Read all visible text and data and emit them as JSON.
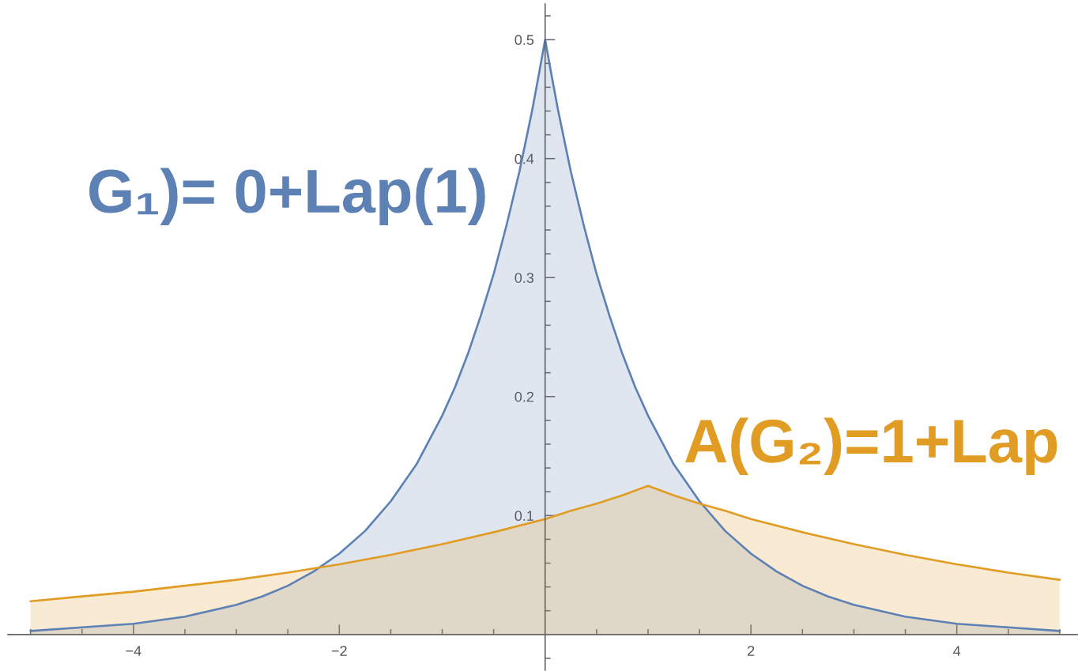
{
  "chart_data": {
    "type": "area",
    "series": [
      {
        "name": "G₁)= 0+Lap(1)",
        "color": "#5e81b5",
        "x": [
          -5,
          -4.5,
          -4,
          -3.5,
          -3,
          -2.75,
          -2.5,
          -2.25,
          -2,
          -1.75,
          -1.5,
          -1.25,
          -1,
          -0.875,
          -0.75,
          -0.625,
          -0.5,
          -0.375,
          -0.25,
          -0.1875,
          -0.125,
          -0.0625,
          0,
          0.0625,
          0.125,
          0.1875,
          0.25,
          0.375,
          0.5,
          0.625,
          0.75,
          0.875,
          1,
          1.25,
          1.5,
          1.75,
          2,
          2.25,
          2.5,
          2.75,
          3,
          3.5,
          4,
          4.5,
          5
        ],
        "values": [
          0.003,
          0.006,
          0.009,
          0.015,
          0.025,
          0.032,
          0.041,
          0.053,
          0.068,
          0.087,
          0.112,
          0.143,
          0.184,
          0.208,
          0.236,
          0.268,
          0.303,
          0.344,
          0.389,
          0.415,
          0.441,
          0.47,
          0.5,
          0.47,
          0.441,
          0.415,
          0.389,
          0.344,
          0.303,
          0.268,
          0.236,
          0.208,
          0.184,
          0.143,
          0.112,
          0.087,
          0.068,
          0.053,
          0.041,
          0.032,
          0.025,
          0.015,
          0.009,
          0.006,
          0.003
        ]
      },
      {
        "name": "A(G₂)=1+Lap",
        "color": "#e19c24",
        "x": [
          -5,
          -4.5,
          -4,
          -3.5,
          -3,
          -2.5,
          -2,
          -1.5,
          -1,
          -0.5,
          0,
          0.25,
          0.5,
          0.75,
          1,
          1.25,
          1.5,
          1.75,
          2,
          2.5,
          3,
          3.5,
          4,
          4.5,
          5
        ],
        "values": [
          0.028,
          0.032,
          0.036,
          0.041,
          0.046,
          0.052,
          0.059,
          0.067,
          0.076,
          0.086,
          0.097,
          0.104,
          0.11,
          0.117,
          0.125,
          0.117,
          0.11,
          0.104,
          0.097,
          0.086,
          0.076,
          0.067,
          0.059,
          0.052,
          0.046
        ]
      }
    ],
    "xlim": [
      -5.22,
      5.17
    ],
    "xticks": [
      {
        "value": -5,
        "label": null
      },
      {
        "value": -4.5,
        "label": null
      },
      {
        "value": -4,
        "label": "−4"
      },
      {
        "value": -3.5,
        "label": null
      },
      {
        "value": -3,
        "label": null
      },
      {
        "value": -2.5,
        "label": null
      },
      {
        "value": -2,
        "label": "−2"
      },
      {
        "value": -1.5,
        "label": null
      },
      {
        "value": -1,
        "label": null
      },
      {
        "value": -0.5,
        "label": null
      },
      {
        "value": 0.5,
        "label": null
      },
      {
        "value": 1,
        "label": null
      },
      {
        "value": 1.5,
        "label": null
      },
      2,
      {
        "value": 2.5,
        "label": null
      },
      {
        "value": 3,
        "label": null
      },
      {
        "value": 3.5,
        "label": null
      },
      4,
      {
        "value": 4.5,
        "label": null
      },
      {
        "value": 5,
        "label": null
      }
    ],
    "ylim": [
      -0.03,
      0.53
    ],
    "yticks": [
      {
        "value": -0.02,
        "label": null
      },
      {
        "value": 0.02,
        "label": null
      },
      {
        "value": 0.04,
        "label": null
      },
      {
        "value": 0.06,
        "label": null
      },
      {
        "value": 0.08,
        "label": null
      },
      0.1,
      {
        "value": 0.12,
        "label": null
      },
      {
        "value": 0.14,
        "label": null
      },
      {
        "value": 0.16,
        "label": null
      },
      {
        "value": 0.18,
        "label": null
      },
      0.2,
      {
        "value": 0.22,
        "label": null
      },
      {
        "value": 0.24,
        "label": null
      },
      {
        "value": 0.26,
        "label": null
      },
      {
        "value": 0.28,
        "label": null
      },
      0.3,
      {
        "value": 0.32,
        "label": null
      },
      {
        "value": 0.34,
        "label": null
      },
      {
        "value": 0.36,
        "label": null
      },
      {
        "value": 0.38,
        "label": null
      },
      0.4,
      {
        "value": 0.42,
        "label": null
      },
      {
        "value": 0.44,
        "label": null
      },
      {
        "value": 0.46,
        "label": null
      },
      {
        "value": 0.48,
        "label": null
      },
      0.5,
      {
        "value": 0.52,
        "label": null
      }
    ]
  }
}
